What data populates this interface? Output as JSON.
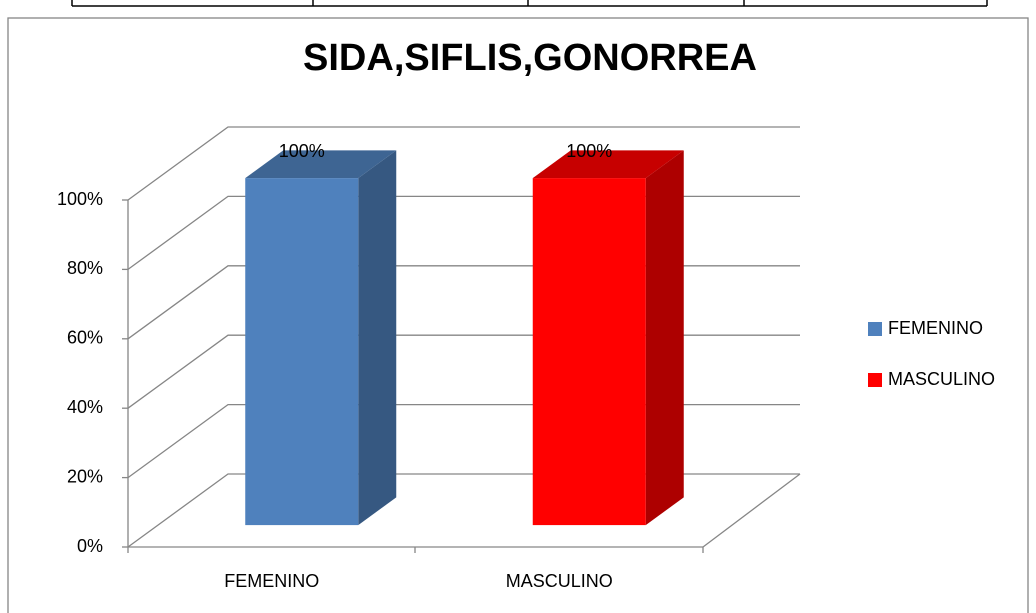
{
  "chart_data": {
    "type": "bar3d",
    "title": "SIDA,SIFLIS,GONORREA",
    "categories": [
      "FEMENINO",
      "MASCULINO"
    ],
    "series": [
      {
        "name": "FEMENINO",
        "color": "#4f81bd",
        "values": [
          100,
          null
        ],
        "value_labels": [
          "100%",
          null
        ]
      },
      {
        "name": "MASCULINO",
        "color": "#ff0000",
        "values": [
          null,
          100
        ],
        "value_labels": [
          null,
          "100%"
        ]
      }
    ],
    "ylim": [
      0,
      100
    ],
    "yticks": [
      {
        "value": 0,
        "label": "0%"
      },
      {
        "value": 20,
        "label": "20%"
      },
      {
        "value": 40,
        "label": "40%"
      },
      {
        "value": 60,
        "label": "60%"
      },
      {
        "value": 80,
        "label": "80%"
      },
      {
        "value": 100,
        "label": "100%"
      }
    ],
    "grid": true,
    "legend": "right"
  }
}
